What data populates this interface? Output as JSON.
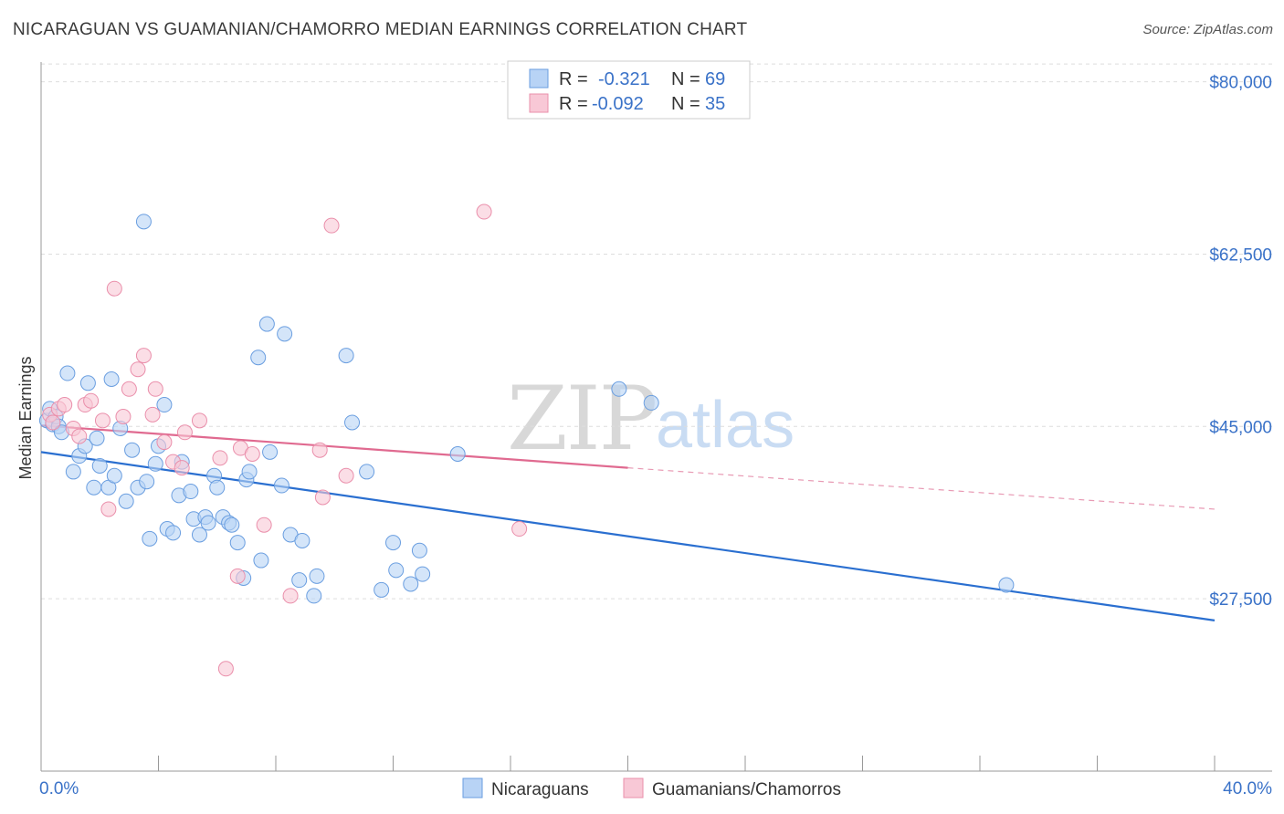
{
  "title": "NICARAGUAN VS GUAMANIAN/CHAMORRO MEDIAN EARNINGS CORRELATION CHART",
  "source": "Source: ZipAtlas.com",
  "watermark": {
    "zip": "ZIP",
    "atlas": "atlas"
  },
  "legend": {
    "r_label": "R =",
    "n_label": "N =",
    "entries": [
      {
        "name": "Nicaraguans",
        "r": "-0.321",
        "n": "69",
        "fill": "#b8d3f5",
        "stroke": "#6a9ee0"
      },
      {
        "name": "Guamanians/Chamorros",
        "r": "-0.092",
        "n": "35",
        "fill": "#f8c8d6",
        "stroke": "#ea8fab"
      }
    ]
  },
  "chart_data": {
    "type": "scatter",
    "title": "NICARAGUAN VS GUAMANIAN/CHAMORRO MEDIAN EARNINGS CORRELATION CHART",
    "xlabel": "",
    "ylabel": "Median Earnings",
    "xlim": [
      0,
      40
    ],
    "ylim": [
      10000,
      82000
    ],
    "x_tick_labels": [
      {
        "value": 0,
        "label": "0.0%"
      },
      {
        "value": 40,
        "label": "40.0%"
      }
    ],
    "y_tick_labels": [
      {
        "value": 27500,
        "label": "$27,500"
      },
      {
        "value": 45000,
        "label": "$45,000"
      },
      {
        "value": 62500,
        "label": "$62,500"
      },
      {
        "value": 80000,
        "label": "$80,000"
      }
    ],
    "grid": true,
    "series": [
      {
        "name": "Nicaraguans",
        "color": "#6a9ee0",
        "fill": "#b8d3f5",
        "points": [
          [
            0.2,
            45.6
          ],
          [
            0.3,
            46.8
          ],
          [
            0.4,
            45.2
          ],
          [
            0.5,
            46.0
          ],
          [
            0.6,
            45.0
          ],
          [
            0.7,
            44.4
          ],
          [
            0.9,
            50.4
          ],
          [
            1.1,
            40.4
          ],
          [
            1.3,
            42.0
          ],
          [
            1.5,
            43.0
          ],
          [
            1.6,
            49.4
          ],
          [
            1.8,
            38.8
          ],
          [
            1.9,
            43.8
          ],
          [
            2.0,
            41.0
          ],
          [
            2.3,
            38.8
          ],
          [
            2.4,
            49.8
          ],
          [
            2.5,
            40.0
          ],
          [
            2.7,
            44.8
          ],
          [
            2.9,
            37.4
          ],
          [
            3.1,
            42.6
          ],
          [
            3.3,
            38.8
          ],
          [
            3.5,
            65.8
          ],
          [
            3.6,
            39.4
          ],
          [
            3.7,
            33.6
          ],
          [
            3.9,
            41.2
          ],
          [
            4.0,
            43.0
          ],
          [
            4.2,
            47.2
          ],
          [
            4.3,
            34.6
          ],
          [
            4.5,
            34.2
          ],
          [
            4.7,
            38.0
          ],
          [
            4.8,
            41.4
          ],
          [
            5.1,
            38.4
          ],
          [
            5.2,
            35.6
          ],
          [
            5.4,
            34.0
          ],
          [
            5.6,
            35.8
          ],
          [
            5.7,
            35.2
          ],
          [
            5.9,
            40.0
          ],
          [
            6.0,
            38.8
          ],
          [
            6.2,
            35.8
          ],
          [
            6.4,
            35.2
          ],
          [
            6.5,
            35.0
          ],
          [
            6.7,
            33.2
          ],
          [
            6.9,
            29.6
          ],
          [
            7.0,
            39.6
          ],
          [
            7.1,
            40.4
          ],
          [
            7.4,
            52.0
          ],
          [
            7.5,
            31.4
          ],
          [
            7.7,
            55.4
          ],
          [
            7.8,
            42.4
          ],
          [
            8.2,
            39.0
          ],
          [
            8.3,
            54.4
          ],
          [
            8.5,
            34.0
          ],
          [
            8.8,
            29.4
          ],
          [
            8.9,
            33.4
          ],
          [
            9.3,
            27.8
          ],
          [
            9.4,
            29.8
          ],
          [
            10.4,
            52.2
          ],
          [
            10.6,
            45.4
          ],
          [
            11.1,
            40.4
          ],
          [
            11.6,
            28.4
          ],
          [
            12.0,
            33.2
          ],
          [
            12.1,
            30.4
          ],
          [
            12.6,
            29.0
          ],
          [
            12.9,
            32.4
          ],
          [
            13.0,
            30.0
          ],
          [
            14.2,
            42.2
          ],
          [
            19.7,
            48.8
          ],
          [
            20.8,
            47.4
          ],
          [
            32.9,
            28.9
          ]
        ],
        "trend": {
          "x": [
            0,
            40
          ],
          "y": [
            42.4,
            25.3
          ]
        }
      },
      {
        "name": "Guamanians/Chamorros",
        "color": "#ea8fab",
        "fill": "#f8c8d6",
        "points": [
          [
            0.3,
            46.2
          ],
          [
            0.4,
            45.4
          ],
          [
            0.6,
            46.8
          ],
          [
            0.8,
            47.2
          ],
          [
            1.1,
            44.8
          ],
          [
            1.3,
            44.0
          ],
          [
            1.5,
            47.2
          ],
          [
            1.7,
            47.6
          ],
          [
            2.1,
            45.6
          ],
          [
            2.3,
            36.6
          ],
          [
            2.5,
            59.0
          ],
          [
            2.8,
            46.0
          ],
          [
            3.0,
            48.8
          ],
          [
            3.3,
            50.8
          ],
          [
            3.5,
            52.2
          ],
          [
            3.8,
            46.2
          ],
          [
            3.9,
            48.8
          ],
          [
            4.2,
            43.4
          ],
          [
            4.5,
            41.4
          ],
          [
            4.8,
            40.8
          ],
          [
            4.9,
            44.4
          ],
          [
            5.4,
            45.6
          ],
          [
            6.1,
            41.8
          ],
          [
            6.3,
            20.4
          ],
          [
            6.7,
            29.8
          ],
          [
            6.8,
            42.8
          ],
          [
            7.2,
            42.2
          ],
          [
            7.6,
            35.0
          ],
          [
            8.5,
            27.8
          ],
          [
            9.5,
            42.6
          ],
          [
            9.6,
            37.8
          ],
          [
            9.9,
            65.4
          ],
          [
            10.4,
            40.0
          ],
          [
            15.1,
            66.8
          ],
          [
            16.3,
            34.6
          ]
        ],
        "trend": {
          "x": [
            0,
            20
          ],
          "y": [
            45.1,
            40.8
          ]
        },
        "trend_extension": {
          "x": [
            20,
            40
          ],
          "y": [
            40.8,
            36.6
          ]
        }
      }
    ]
  }
}
